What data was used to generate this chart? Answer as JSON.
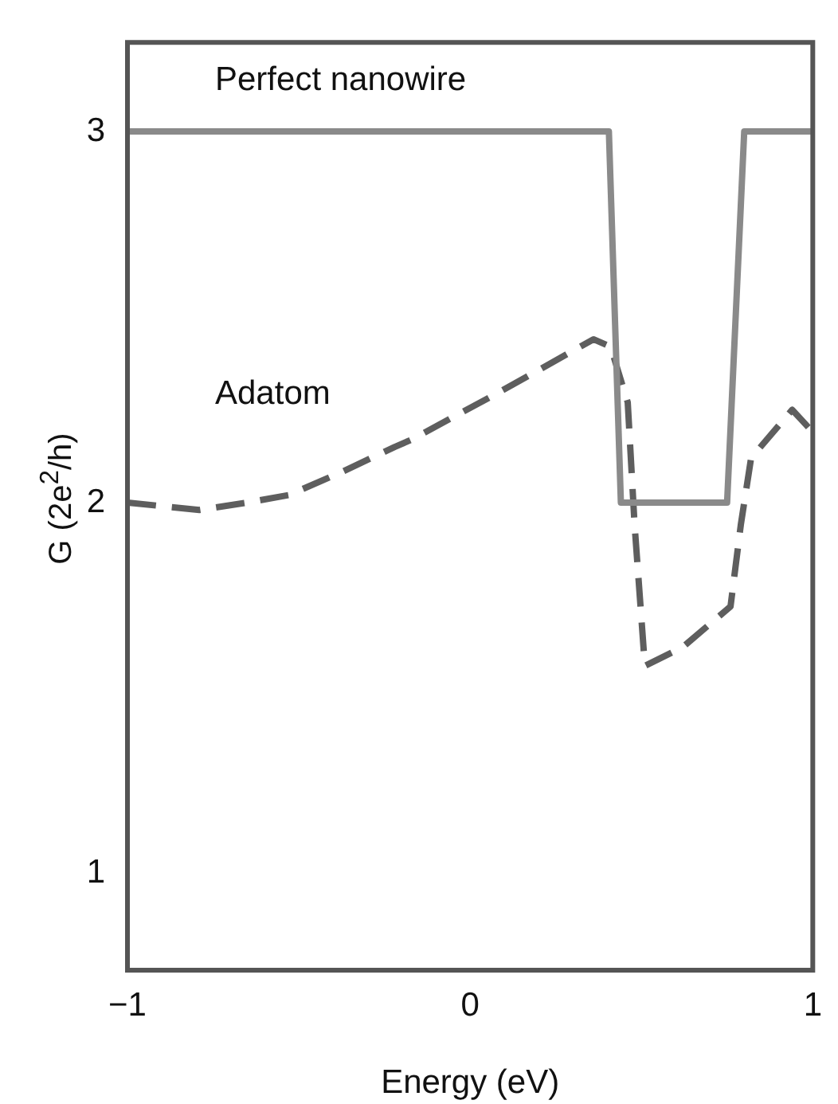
{
  "chart_data": {
    "type": "line",
    "xlabel": "Energy (eV)",
    "ylabel": "G (2e$^{2}$/h)",
    "xlim": [
      -1,
      1
    ],
    "xticks": [
      {
        "value": -1,
        "label": "−1"
      },
      0,
      1
    ],
    "ylim": [
      0.74,
      3.24
    ],
    "yticks": [
      1,
      2,
      3
    ],
    "grid": false,
    "legend": false,
    "marker": "none",
    "series": [
      {
        "name": "Perfect nanowire",
        "color": "#8a8a8a",
        "line_style": "solid",
        "x": [
          -1,
          0.405,
          0.44,
          0.75,
          0.8,
          1
        ],
        "values": [
          3,
          3,
          2,
          2,
          3,
          3
        ]
      },
      {
        "name": "Adatom",
        "color": "#5e5e5e",
        "line_style": "dashed",
        "x": [
          -1,
          -0.79,
          -0.65,
          -0.53,
          -0.38,
          -0.22,
          -0.17,
          0.09,
          0.36,
          0.41,
          0.46,
          0.48,
          0.51,
          0.62,
          0.76,
          0.79,
          0.82,
          0.94,
          1
        ],
        "values": [
          2,
          1.98,
          2,
          2.02,
          2.08,
          2.15,
          2.17,
          2.3,
          2.44,
          2.42,
          2.27,
          1.94,
          1.56,
          1.61,
          1.72,
          1.94,
          2.12,
          2.25,
          2.19
        ]
      }
    ]
  }
}
